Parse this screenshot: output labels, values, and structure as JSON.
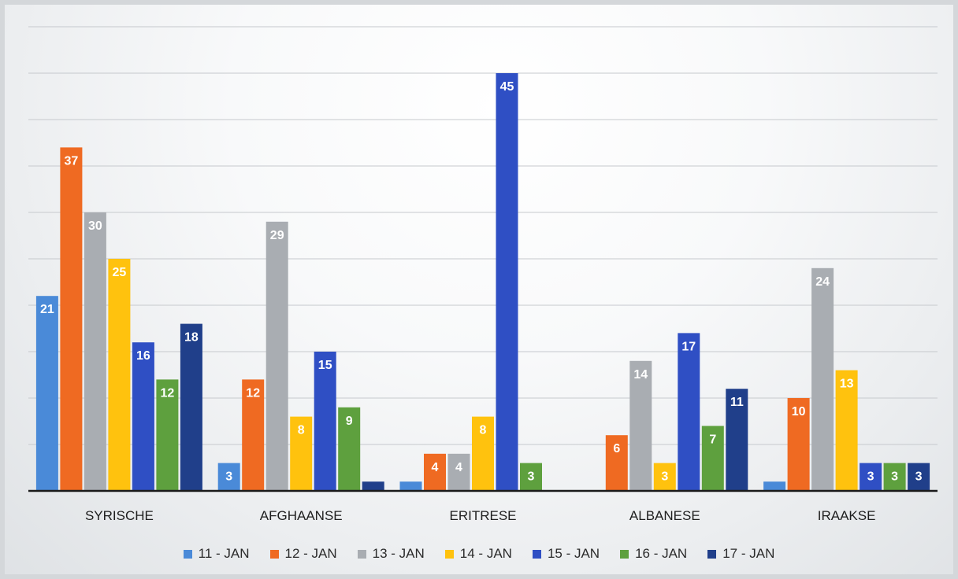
{
  "chart_data": {
    "type": "bar",
    "categories": [
      "SYRISCHE",
      "AFGHAANSE",
      "ERITRESE",
      "ALBANESE",
      "IRAAKSE"
    ],
    "series": [
      {
        "name": "11 - JAN",
        "color": "#4a8ad8",
        "values": [
          21,
          3,
          1,
          null,
          1
        ],
        "labels": [
          "21",
          "3",
          "",
          "",
          ""
        ]
      },
      {
        "name": "12 - JAN",
        "color": "#ef6a22",
        "values": [
          37,
          12,
          4,
          6,
          10
        ],
        "labels": [
          "37",
          "12",
          "4",
          "6",
          "10"
        ]
      },
      {
        "name": "13 - JAN",
        "color": "#a9adb2",
        "values": [
          30,
          29,
          4,
          14,
          24
        ],
        "labels": [
          "30",
          "29",
          "4",
          "14",
          "24"
        ]
      },
      {
        "name": "14 - JAN",
        "color": "#ffc20e",
        "values": [
          25,
          8,
          8,
          3,
          13
        ],
        "labels": [
          "25",
          "8",
          "8",
          "3",
          "13"
        ]
      },
      {
        "name": "15 - JAN",
        "color": "#2f4fc4",
        "values": [
          16,
          15,
          45,
          17,
          3
        ],
        "labels": [
          "16",
          "15",
          "45",
          "17",
          "3"
        ]
      },
      {
        "name": "16 - JAN",
        "color": "#5ea03e",
        "values": [
          12,
          9,
          3,
          7,
          3
        ],
        "labels": [
          "12",
          "9",
          "3",
          "7",
          "3"
        ]
      },
      {
        "name": "17 - JAN",
        "color": "#203f8a",
        "values": [
          18,
          1,
          null,
          11,
          3
        ],
        "labels": [
          "18",
          "",
          "",
          "11",
          "3"
        ]
      }
    ],
    "ylim": [
      0,
      50
    ],
    "grid": true,
    "legend_position": "bottom"
  }
}
